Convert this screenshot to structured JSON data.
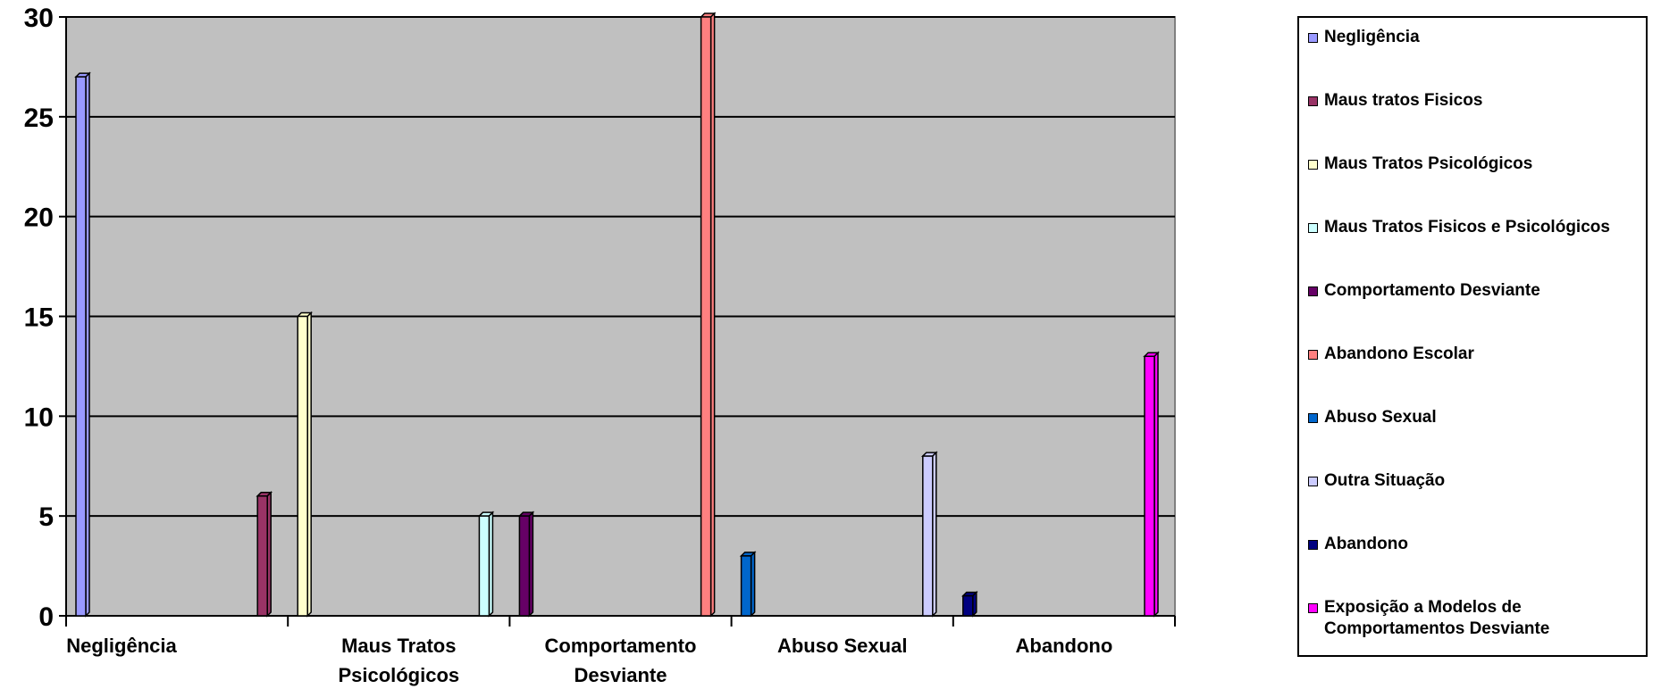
{
  "chart_data": {
    "type": "bar",
    "title": "",
    "xlabel": "",
    "ylabel": "",
    "ylim": [
      0,
      30
    ],
    "yticks": [
      "0",
      "5",
      "10",
      "15",
      "20",
      "25",
      "30"
    ],
    "grid": true,
    "legend_position": "right",
    "x_tick_labels": [
      [
        "Negligência"
      ],
      [
        "Maus Tratos",
        "Psicológicos"
      ],
      [
        "Comportamento",
        "Desviante"
      ],
      [
        "Abuso Sexual"
      ],
      [
        "Abandono"
      ]
    ],
    "series": [
      {
        "name": "Negligência",
        "value": 27,
        "color": "#9999ff"
      },
      {
        "name": "Maus tratos Fisicos",
        "value": 6,
        "color": "#993366"
      },
      {
        "name": "Maus Tratos Psicológicos",
        "value": 15,
        "color": "#ffffcc"
      },
      {
        "name": "Maus Tratos Fisicos e Psicológicos",
        "value": 5,
        "color": "#ccffff"
      },
      {
        "name": "Comportamento Desviante",
        "value": 5,
        "color": "#660066"
      },
      {
        "name": "Abandono Escolar",
        "value": 30,
        "color": "#ff8080"
      },
      {
        "name": "Abuso Sexual",
        "value": 3,
        "color": "#0066cc"
      },
      {
        "name": "Outra Situação",
        "value": 8,
        "color": "#ccccff"
      },
      {
        "name": "Abandono",
        "value": 1,
        "color": "#000080"
      },
      {
        "name": "Exposição a Modelos de Comportamentos Desviante",
        "value": 13,
        "color": "#ff00ff"
      }
    ],
    "legend_labels": [
      [
        "Negligência"
      ],
      [
        "Maus tratos Fisicos"
      ],
      [
        "Maus Tratos Psicológicos"
      ],
      [
        "Maus Tratos Fisicos e Psicológicos"
      ],
      [
        "Comportamento Desviante"
      ],
      [
        "Abandono Escolar"
      ],
      [
        "Abuso Sexual"
      ],
      [
        "Outra Situação"
      ],
      [
        "Abandono"
      ],
      [
        "Exposição a Modelos de",
        "Comportamentos Desviante"
      ]
    ],
    "plot_background": "#c0c0c0"
  }
}
